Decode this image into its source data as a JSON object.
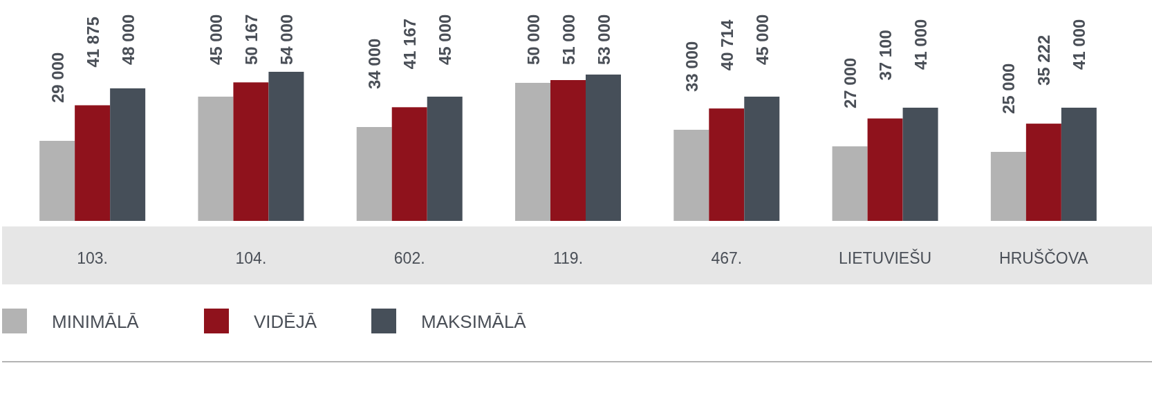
{
  "chart_data": {
    "type": "bar",
    "categories": [
      "103.",
      "104.",
      "602.",
      "119.",
      "467.",
      "LIETUVIEŠU",
      "HRUŠČOVA"
    ],
    "series": [
      {
        "name": "MINIMĀLĀ",
        "color": "#b3b3b3",
        "values": [
          29000,
          45000,
          34000,
          50000,
          33000,
          27000,
          25000
        ],
        "value_labels": [
          "29 000",
          "45 000",
          "34 000",
          "50 000",
          "33 000",
          "27 000",
          "25 000"
        ]
      },
      {
        "name": "VIDĒJĀ",
        "color": "#8f121c",
        "values": [
          41875,
          50167,
          41167,
          51000,
          40714,
          37100,
          35222
        ],
        "value_labels": [
          "41 875",
          "50 167",
          "41 167",
          "51 000",
          "40 714",
          "37 100",
          "35 222"
        ]
      },
      {
        "name": "MAKSIMĀLĀ",
        "color": "#464f59",
        "values": [
          48000,
          54000,
          45000,
          53000,
          45000,
          41000,
          41000
        ],
        "value_labels": [
          "48 000",
          "54 000",
          "45 000",
          "53 000",
          "45 000",
          "41 000",
          "41 000"
        ]
      }
    ],
    "legend": "bottom"
  }
}
